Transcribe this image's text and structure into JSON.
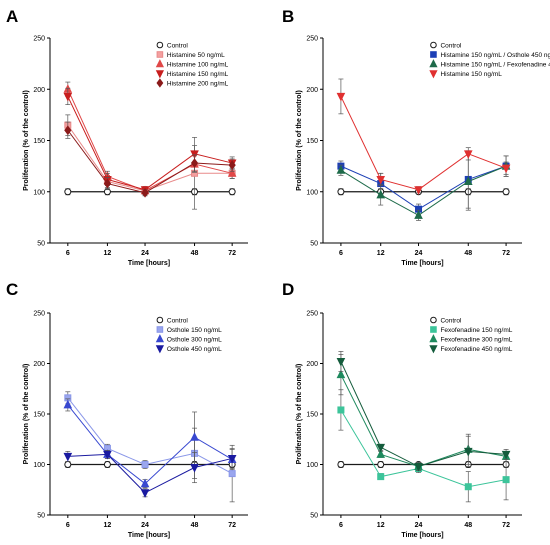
{
  "chart_data": [
    {
      "type": "line",
      "panel_label": "A",
      "xlabel": "Time [hours]",
      "ylabel": "Proliferation (% of the control)",
      "x": [
        6,
        12,
        24,
        48,
        72
      ],
      "ylim": [
        50,
        250
      ],
      "yticks": [
        50,
        100,
        150,
        200,
        250
      ],
      "grid": false,
      "legend_position": "top-right",
      "series": [
        {
          "name": "Control",
          "values": [
            100,
            100,
            100,
            100,
            100
          ],
          "errors": [
            3,
            3,
            2,
            3,
            3
          ],
          "marker": "circle",
          "color": "#1a1a1a",
          "fill": "#ffffff"
        },
        {
          "name": "Histamine 50 ng/mL",
          "values": [
            165,
            110,
            101,
            118,
            118
          ],
          "errors": [
            10,
            6,
            4,
            35,
            5
          ],
          "marker": "square",
          "color": "#e88a8a",
          "fill": "#f4a0a0"
        },
        {
          "name": "Histamine 100 ng/mL",
          "values": [
            200,
            115,
            101,
            127,
            118
          ],
          "errors": [
            7,
            5,
            3,
            8,
            5
          ],
          "marker": "triangle-up",
          "color": "#e04848",
          "fill": "#e04848"
        },
        {
          "name": "Histamine 150 ng/mL",
          "values": [
            193,
            112,
            102,
            137,
            128
          ],
          "errors": [
            8,
            6,
            3,
            8,
            6
          ],
          "marker": "triangle-down",
          "color": "#c81e1e",
          "fill": "#c81e1e"
        },
        {
          "name": "Histamine 200 ng/mL",
          "values": [
            160,
            108,
            99,
            128,
            126
          ],
          "errors": [
            8,
            6,
            3,
            8,
            6
          ],
          "marker": "diamond",
          "color": "#8b1a1a",
          "fill": "#8b1a1a"
        }
      ]
    },
    {
      "type": "line",
      "panel_label": "B",
      "xlabel": "Time [hours]",
      "ylabel": "Proliferation (% of the control)",
      "x": [
        6,
        12,
        24,
        48,
        72
      ],
      "ylim": [
        50,
        250
      ],
      "yticks": [
        50,
        100,
        150,
        200,
        250
      ],
      "grid": false,
      "legend_position": "top-right",
      "series": [
        {
          "name": "Control",
          "values": [
            100,
            100,
            100,
            100,
            100
          ],
          "errors": [
            3,
            3,
            2,
            3,
            3
          ],
          "marker": "circle",
          "color": "#1a1a1a",
          "fill": "#ffffff"
        },
        {
          "name": "Histamine 150 ng/mL / Osthole 450 ng/mL",
          "values": [
            125,
            108,
            83,
            112,
            125
          ],
          "errors": [
            5,
            10,
            5,
            28,
            10
          ],
          "marker": "square",
          "color": "#1c3fb5",
          "fill": "#1c3fb5"
        },
        {
          "name": "Histamine 150 ng/mL / Fexofenadine 450 ng/mL",
          "values": [
            121,
            97,
            77,
            110,
            125
          ],
          "errors": [
            5,
            10,
            5,
            28,
            10
          ],
          "marker": "triangle-up",
          "color": "#1e6b4a",
          "fill": "#1e6b4a"
        },
        {
          "name": "Histamine 150 ng/mL",
          "values": [
            193,
            112,
            102,
            137,
            123
          ],
          "errors": [
            17,
            6,
            3,
            6,
            6
          ],
          "marker": "triangle-down",
          "color": "#e03030",
          "fill": "#e03030"
        }
      ]
    },
    {
      "type": "line",
      "panel_label": "C",
      "xlabel": "Time [hours]",
      "ylabel": "Proliferation (% of the control)",
      "x": [
        6,
        12,
        24,
        48,
        72
      ],
      "ylim": [
        50,
        250
      ],
      "yticks": [
        50,
        100,
        150,
        200,
        250
      ],
      "grid": false,
      "legend_position": "top-right",
      "series": [
        {
          "name": "Control",
          "values": [
            100,
            100,
            100,
            100,
            100
          ],
          "errors": [
            3,
            3,
            2,
            3,
            3
          ],
          "marker": "circle",
          "color": "#1a1a1a",
          "fill": "#ffffff"
        },
        {
          "name": "Osthole 150 ng/mL",
          "values": [
            166,
            116,
            100,
            111,
            91
          ],
          "errors": [
            6,
            4,
            4,
            25,
            28
          ],
          "marker": "square",
          "color": "#8a97e8",
          "fill": "#9aa6ee"
        },
        {
          "name": "Osthole 300 ng/mL",
          "values": [
            159,
            110,
            81,
            127,
            105
          ],
          "errors": [
            6,
            4,
            4,
            25,
            10
          ],
          "marker": "triangle-up",
          "color": "#3848d0",
          "fill": "#3848d0"
        },
        {
          "name": "Osthole 450 ng/mL",
          "values": [
            108,
            110,
            72,
            97,
            106
          ],
          "errors": [
            5,
            4,
            4,
            15,
            10
          ],
          "marker": "triangle-down",
          "color": "#1a1aa0",
          "fill": "#1a1aa0"
        }
      ]
    },
    {
      "type": "line",
      "panel_label": "D",
      "xlabel": "Time [hours]",
      "ylabel": "Proliferation (% of the control)",
      "x": [
        6,
        12,
        24,
        48,
        72
      ],
      "ylim": [
        50,
        250
      ],
      "yticks": [
        50,
        100,
        150,
        200,
        250
      ],
      "grid": false,
      "legend_position": "top-right",
      "series": [
        {
          "name": "Control",
          "values": [
            100,
            100,
            100,
            100,
            100
          ],
          "errors": [
            3,
            3,
            2,
            3,
            3
          ],
          "marker": "circle",
          "color": "#1a1a1a",
          "fill": "#ffffff"
        },
        {
          "name": "Fexofenadine 150 ng/mL",
          "values": [
            154,
            88,
            96,
            78,
            85
          ],
          "errors": [
            20,
            3,
            4,
            15,
            20
          ],
          "marker": "square",
          "color": "#3cc49a",
          "fill": "#3cc49a"
        },
        {
          "name": "Fexofenadine 300 ng/mL",
          "values": [
            189,
            110,
            98,
            115,
            108
          ],
          "errors": [
            20,
            3,
            4,
            15,
            5
          ],
          "marker": "triangle-up",
          "color": "#1f8a5e",
          "fill": "#1f8a5e"
        },
        {
          "name": "Fexofenadine 450 ng/mL",
          "values": [
            202,
            117,
            98,
            113,
            110
          ],
          "errors": [
            10,
            3,
            4,
            15,
            5
          ],
          "marker": "triangle-down",
          "color": "#145c3c",
          "fill": "#145c3c"
        }
      ]
    }
  ]
}
